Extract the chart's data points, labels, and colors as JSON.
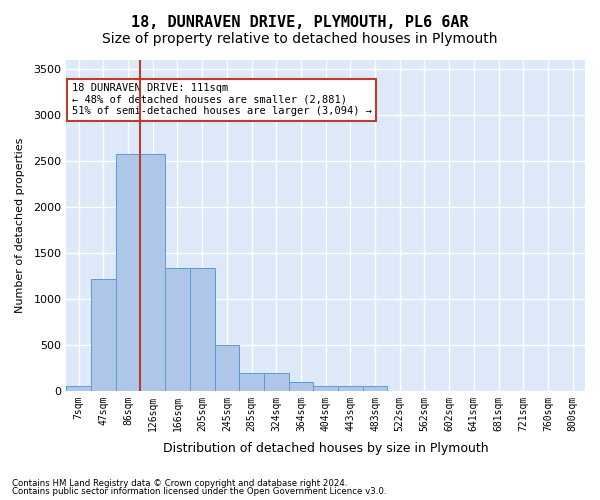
{
  "title": "18, DUNRAVEN DRIVE, PLYMOUTH, PL6 6AR",
  "subtitle": "Size of property relative to detached houses in Plymouth",
  "xlabel": "Distribution of detached houses by size in Plymouth",
  "ylabel": "Number of detached properties",
  "footnote1": "Contains HM Land Registry data © Crown copyright and database right 2024.",
  "footnote2": "Contains public sector information licensed under the Open Government Licence v3.0.",
  "annotation_title": "18 DUNRAVEN DRIVE: 111sqm",
  "annotation_line1": "← 48% of detached houses are smaller (2,881)",
  "annotation_line2": "51% of semi-detached houses are larger (3,094) →",
  "bar_values": [
    50,
    1220,
    2580,
    2580,
    1340,
    1340,
    500,
    190,
    190,
    100,
    50,
    50,
    50,
    0,
    0,
    0,
    0,
    0,
    0,
    0,
    0
  ],
  "categories": [
    "7sqm",
    "47sqm",
    "86sqm",
    "126sqm",
    "166sqm",
    "205sqm",
    "245sqm",
    "285sqm",
    "324sqm",
    "364sqm",
    "404sqm",
    "443sqm",
    "483sqm",
    "522sqm",
    "562sqm",
    "602sqm",
    "641sqm",
    "681sqm",
    "721sqm",
    "760sqm",
    "800sqm"
  ],
  "bar_color": "#aec6e8",
  "bar_edge_color": "#5b9bd5",
  "vline_color": "#c0392b",
  "vline_x": 2.5,
  "ylim": [
    0,
    3600
  ],
  "yticks": [
    0,
    500,
    1000,
    1500,
    2000,
    2500,
    3000,
    3500
  ],
  "bg_color": "#dde8f8",
  "grid_color": "#ffffff",
  "annotation_box_color": "#c0392b",
  "title_fontsize": 11,
  "subtitle_fontsize": 10
}
